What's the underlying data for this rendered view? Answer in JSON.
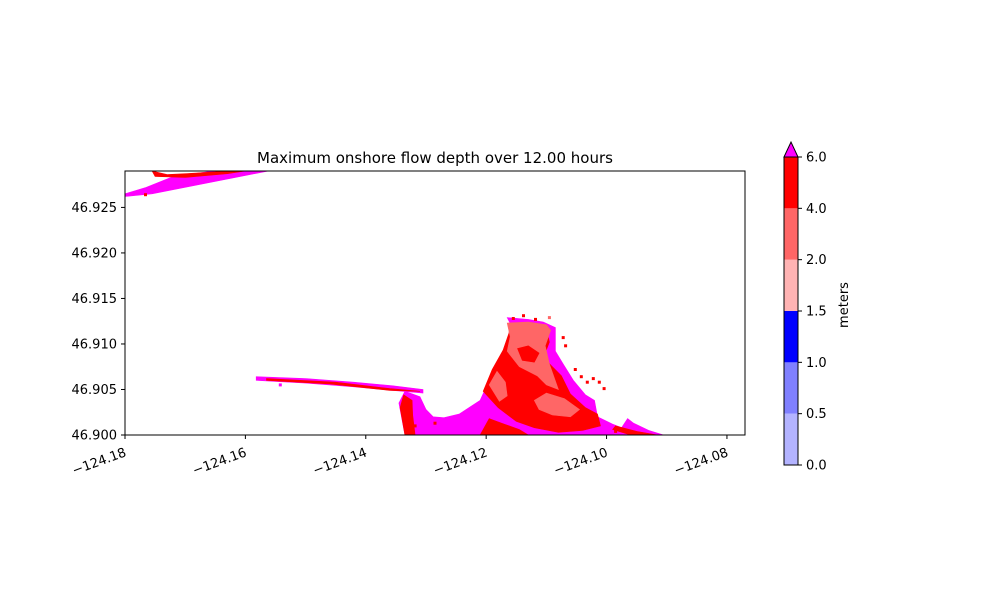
{
  "chart_data": {
    "type": "heatmap",
    "title": "Maximum onshore flow depth over 12.00 hours",
    "xlabel": "",
    "ylabel": "",
    "xlim": [
      -124.18,
      -124.077
    ],
    "ylim": [
      46.9,
      46.929
    ],
    "x_ticks": [
      -124.18,
      -124.16,
      -124.14,
      -124.12,
      -124.1,
      -124.08
    ],
    "x_tick_labels": [
      "−124.18",
      "−124.16",
      "−124.14",
      "−124.12",
      "−124.10",
      "−124.08"
    ],
    "y_ticks": [
      46.9,
      46.905,
      46.91,
      46.915,
      46.92,
      46.925
    ],
    "y_tick_labels": [
      "46.900",
      "46.905",
      "46.910",
      "46.915",
      "46.920",
      "46.925"
    ],
    "grid": false,
    "colorbar": {
      "label": "meters",
      "levels": [
        0.0,
        0.5,
        1.0,
        1.5,
        2.0,
        4.0,
        6.0
      ],
      "level_labels": [
        "0.0",
        "0.5",
        "1.0",
        "1.5",
        "2.0",
        "4.0",
        "6.0"
      ],
      "colors": [
        "#b3b3ff",
        "#8080ff",
        "#0000ff",
        "#ffb3b3",
        "#ff6666",
        "#ff0000"
      ],
      "over_color": "#ff00ff",
      "extend": "max"
    },
    "regions": [
      {
        "name": "north-spit",
        "band": ">6.0",
        "color": "#ff00ff",
        "polygon": [
          [
            -124.18,
            46.9265
          ],
          [
            -124.1765,
            46.9272
          ],
          [
            -124.172,
            46.9284
          ],
          [
            -124.1675,
            46.9288
          ],
          [
            -124.163,
            46.9292
          ],
          [
            -124.159,
            46.9296
          ],
          [
            -124.1562,
            46.929
          ],
          [
            -124.1755,
            46.9265
          ],
          [
            -124.18,
            46.9262
          ]
        ]
      },
      {
        "name": "north-spit-crest",
        "band": "4.0-6.0",
        "color": "#ff0000",
        "polygon": [
          [
            -124.1755,
            46.929
          ],
          [
            -124.173,
            46.9286
          ],
          [
            -124.17,
            46.9287
          ],
          [
            -124.165,
            46.9289
          ],
          [
            -124.16,
            46.9293
          ],
          [
            -124.158,
            46.9292
          ],
          [
            -124.163,
            46.9287
          ],
          [
            -124.17,
            46.9283
          ],
          [
            -124.175,
            46.9284
          ]
        ]
      },
      {
        "name": "south-jetty",
        "band": ">6.0",
        "color": "#ff00ff",
        "polygon": [
          [
            -124.1582,
            46.9064
          ],
          [
            -124.15,
            46.9062
          ],
          [
            -124.142,
            46.9058
          ],
          [
            -124.1355,
            46.9054
          ],
          [
            -124.1305,
            46.905
          ],
          [
            -124.1305,
            46.9046
          ],
          [
            -124.1355,
            46.9049
          ],
          [
            -124.142,
            46.9053
          ],
          [
            -124.15,
            46.9057
          ],
          [
            -124.1582,
            46.906
          ]
        ]
      },
      {
        "name": "south-jetty-crest",
        "band": "4.0-6.0",
        "color": "#ff0000",
        "polygon": [
          [
            -124.1565,
            46.9062
          ],
          [
            -124.145,
            46.9058
          ],
          [
            -124.136,
            46.9051
          ],
          [
            -124.131,
            46.9048
          ],
          [
            -124.136,
            46.9049
          ],
          [
            -124.146,
            46.9056
          ],
          [
            -124.1565,
            46.906
          ]
        ]
      },
      {
        "name": "headland",
        "band": ">6.0",
        "color": "#ff00ff",
        "polygon": [
          [
            -124.1335,
            46.9
          ],
          [
            -124.1345,
            46.9035
          ],
          [
            -124.1335,
            46.9048
          ],
          [
            -124.131,
            46.9042
          ],
          [
            -124.13,
            46.9028
          ],
          [
            -124.1288,
            46.902
          ],
          [
            -124.127,
            46.9019
          ],
          [
            -124.1245,
            46.9023
          ],
          [
            -124.121,
            46.9038
          ],
          [
            -124.1195,
            46.906
          ],
          [
            -124.1175,
            46.908
          ],
          [
            -124.116,
            46.91
          ],
          [
            -124.1158,
            46.912
          ],
          [
            -124.1165,
            46.9129
          ],
          [
            -124.113,
            46.9127
          ],
          [
            -124.1105,
            46.9124
          ],
          [
            -124.1085,
            46.9118
          ],
          [
            -124.1085,
            46.9092
          ],
          [
            -124.1072,
            46.9078
          ],
          [
            -124.1055,
            46.906
          ],
          [
            -124.1035,
            46.9044
          ],
          [
            -124.102,
            46.9038
          ],
          [
            -124.1015,
            46.902
          ],
          [
            -124.099,
            46.9012
          ],
          [
            -124.0975,
            46.9008
          ],
          [
            -124.0965,
            46.9018
          ],
          [
            -124.0955,
            46.9013
          ],
          [
            -124.093,
            46.9005
          ],
          [
            -124.0905,
            46.9
          ],
          [
            -124.1335,
            46.9
          ]
        ]
      },
      {
        "name": "headland-4to6-main",
        "band": "4.0-6.0",
        "color": "#ff0000",
        "polygon": [
          [
            -124.1205,
            46.9048
          ],
          [
            -124.119,
            46.9072
          ],
          [
            -124.1172,
            46.9093
          ],
          [
            -124.1162,
            46.9112
          ],
          [
            -124.116,
            46.9123
          ],
          [
            -124.113,
            46.9121
          ],
          [
            -124.11,
            46.9117
          ],
          [
            -124.1095,
            46.9102
          ],
          [
            -124.1105,
            46.9085
          ],
          [
            -124.1075,
            46.9065
          ],
          [
            -124.106,
            46.9045
          ],
          [
            -124.1035,
            46.903
          ],
          [
            -124.1015,
            46.9023
          ],
          [
            -124.101,
            46.901
          ],
          [
            -124.104,
            46.9005
          ],
          [
            -124.108,
            46.9003
          ],
          [
            -124.112,
            46.9008
          ],
          [
            -124.115,
            46.9015
          ],
          [
            -124.118,
            46.903
          ]
        ]
      },
      {
        "name": "headland-2to4-upper",
        "band": "2.0-4.0",
        "color": "#ff6666",
        "polygon": [
          [
            -124.1165,
            46.9123
          ],
          [
            -124.116,
            46.9108
          ],
          [
            -124.1165,
            46.9092
          ],
          [
            -124.1145,
            46.9075
          ],
          [
            -124.1115,
            46.9065
          ],
          [
            -124.11,
            46.9055
          ],
          [
            -124.108,
            46.905
          ],
          [
            -124.1095,
            46.9078
          ],
          [
            -124.1102,
            46.9098
          ],
          [
            -124.1093,
            46.9115
          ],
          [
            -124.11,
            46.9121
          ],
          [
            -124.113,
            46.9124
          ]
        ]
      },
      {
        "name": "headland-2to4-west",
        "band": "2.0-4.0",
        "color": "#ff6666",
        "polygon": [
          [
            -124.1195,
            46.9055
          ],
          [
            -124.1182,
            46.907
          ],
          [
            -124.1168,
            46.9058
          ],
          [
            -124.1165,
            46.9043
          ],
          [
            -124.1178,
            46.9037
          ]
        ]
      },
      {
        "name": "headland-2to4-south",
        "band": "2.0-4.0",
        "color": "#ff6666",
        "polygon": [
          [
            -124.112,
            46.9038
          ],
          [
            -124.11,
            46.9046
          ],
          [
            -124.107,
            46.904
          ],
          [
            -124.1045,
            46.9028
          ],
          [
            -124.106,
            46.902
          ],
          [
            -124.109,
            46.9022
          ],
          [
            -124.1112,
            46.9028
          ]
        ]
      },
      {
        "name": "headland-4to6-center",
        "band": "4.0-6.0",
        "color": "#ff0000",
        "polygon": [
          [
            -124.1148,
            46.9095
          ],
          [
            -124.113,
            46.9098
          ],
          [
            -124.1112,
            46.909
          ],
          [
            -124.112,
            46.908
          ],
          [
            -124.114,
            46.9082
          ]
        ]
      },
      {
        "name": "west-crest-strip",
        "band": "4.0-6.0",
        "color": "#ff0000",
        "polygon": [
          [
            -124.1335,
            46.9
          ],
          [
            -124.1343,
            46.903
          ],
          [
            -124.1337,
            46.9044
          ],
          [
            -124.1323,
            46.9038
          ],
          [
            -124.1322,
            46.9022
          ],
          [
            -124.1318,
            46.9
          ]
        ]
      },
      {
        "name": "east-coast-strip",
        "band": "4.0-6.0",
        "color": "#ff0000",
        "polygon": [
          [
            -124.0985,
            46.901
          ],
          [
            -124.095,
            46.9004
          ],
          [
            -124.0915,
            46.9
          ],
          [
            -124.096,
            46.9
          ],
          [
            -124.099,
            46.9006
          ]
        ]
      },
      {
        "name": "headland-lower-patches",
        "band": "4.0-6.0",
        "color": "#ff0000",
        "polygon": [
          [
            -124.121,
            46.9
          ],
          [
            -124.1195,
            46.9018
          ],
          [
            -124.117,
            46.9012
          ],
          [
            -124.1145,
            46.9006
          ],
          [
            -124.113,
            46.9
          ]
        ]
      }
    ],
    "specks": [
      {
        "x": -124.1542,
        "y": 46.9055,
        "band": ">6.0",
        "color": "#ff00ff"
      },
      {
        "x": -124.1138,
        "y": 46.9131,
        "band": "4.0-6.0",
        "color": "#ff0000"
      },
      {
        "x": -124.1118,
        "y": 46.9127,
        "band": "4.0-6.0",
        "color": "#ff0000"
      },
      {
        "x": -124.1095,
        "y": 46.9129,
        "band": "2.0-4.0",
        "color": "#ff6666"
      },
      {
        "x": -124.1155,
        "y": 46.9128,
        "band": "4.0-6.0",
        "color": "#ff0000"
      },
      {
        "x": -124.1072,
        "y": 46.9107,
        "band": "4.0-6.0",
        "color": "#ff0000"
      },
      {
        "x": -124.1068,
        "y": 46.9098,
        "band": "4.0-6.0",
        "color": "#ff0000"
      },
      {
        "x": -124.1052,
        "y": 46.9072,
        "band": "4.0-6.0",
        "color": "#ff0000"
      },
      {
        "x": -124.1042,
        "y": 46.9064,
        "band": "4.0-6.0",
        "color": "#ff0000"
      },
      {
        "x": -124.1032,
        "y": 46.9058,
        "band": "4.0-6.0",
        "color": "#ff0000"
      },
      {
        "x": -124.1022,
        "y": 46.9062,
        "band": "4.0-6.0",
        "color": "#ff0000"
      },
      {
        "x": -124.1012,
        "y": 46.9058,
        "band": "4.0-6.0",
        "color": "#ff0000"
      },
      {
        "x": -124.1004,
        "y": 46.9051,
        "band": "4.0-6.0",
        "color": "#ff0000"
      },
      {
        "x": -124.1766,
        "y": 46.9264,
        "band": "4.0-6.0",
        "color": "#ff0000"
      },
      {
        "x": -124.1318,
        "y": 46.901,
        "band": "4.0-6.0",
        "color": "#ff0000"
      },
      {
        "x": -124.1285,
        "y": 46.9013,
        "band": "4.0-6.0",
        "color": "#ff0000"
      },
      {
        "x": -124.1085,
        "y": 46.9009,
        "band": "4.0-6.0",
        "color": "#ff0000"
      },
      {
        "x": -124.1145,
        "y": 46.9016,
        "band": "4.0-6.0",
        "color": "#ff0000"
      },
      {
        "x": -124.0985,
        "y": 46.9004,
        "band": "4.0-6.0",
        "color": "#ff0000"
      }
    ]
  }
}
